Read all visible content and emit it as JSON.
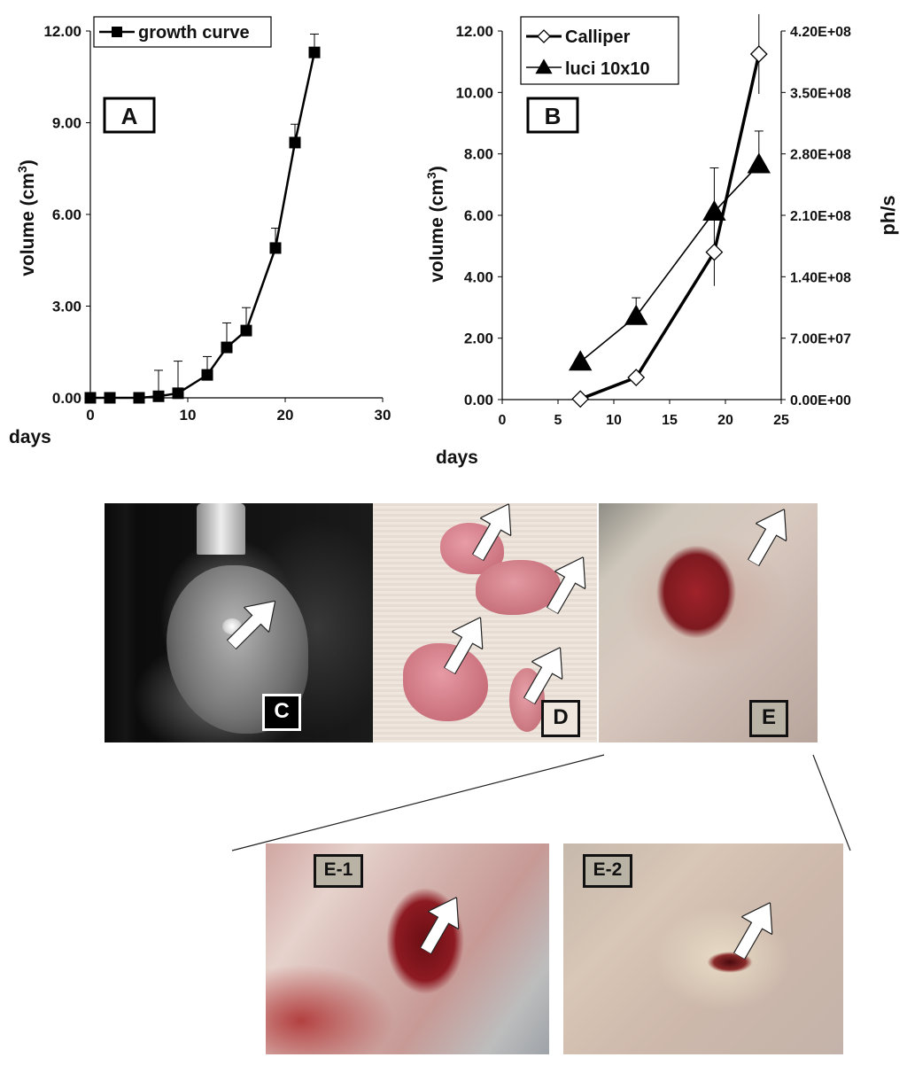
{
  "chart_data": [
    {
      "type": "line",
      "panel_label": "A",
      "xlabel": "days",
      "ylabel": "volume (cm",
      "ylabel_sup": "3",
      "ylabel_close": ")",
      "xlim": [
        0,
        30
      ],
      "ylim": [
        0,
        12
      ],
      "x_ticks": [
        "0",
        "10",
        "20",
        "30"
      ],
      "y_ticks": [
        "0.00",
        "3.00",
        "6.00",
        "9.00",
        "12.00"
      ],
      "legend": "top-left",
      "series": [
        {
          "name": "growth curve",
          "marker": "square-filled",
          "x": [
            0,
            2,
            5,
            7,
            9,
            12,
            14,
            16,
            19,
            21,
            23
          ],
          "y": [
            0.0,
            0.0,
            0.0,
            0.05,
            0.15,
            0.75,
            1.65,
            2.2,
            4.9,
            8.35,
            11.3
          ],
          "err": [
            0,
            0,
            0,
            0.85,
            1.05,
            0.6,
            0.8,
            0.75,
            0.65,
            0.6,
            0.6
          ]
        }
      ]
    },
    {
      "type": "line",
      "panel_label": "B",
      "xlabel": "days",
      "ylabel": "volume (cm",
      "ylabel_sup": "3",
      "ylabel_close": ")",
      "y2label": "ph/s",
      "xlim": [
        0,
        25
      ],
      "ylim": [
        0,
        12
      ],
      "y2lim": [
        0,
        420000000
      ],
      "x_ticks": [
        "0",
        "5",
        "10",
        "15",
        "20",
        "25"
      ],
      "y_ticks": [
        "0.00",
        "2.00",
        "4.00",
        "6.00",
        "8.00",
        "10.00",
        "12.00"
      ],
      "y2_ticks": [
        "0.00E+00",
        "7.00E+07",
        "1.40E+08",
        "2.10E+08",
        "2.80E+08",
        "3.50E+08",
        "4.20E+08"
      ],
      "legend": "top-left",
      "series": [
        {
          "name": "Calliper",
          "marker": "diamond-open",
          "axis": "left",
          "x": [
            7,
            12,
            19,
            23
          ],
          "y": [
            0.02,
            0.72,
            4.8,
            11.25
          ],
          "err": [
            0,
            0,
            1.1,
            1.3
          ]
        },
        {
          "name": "luci 10x10",
          "marker": "triangle-filled",
          "axis": "right",
          "x": [
            7,
            12,
            19,
            23
          ],
          "y": [
            43000000,
            95000000,
            214000000,
            268000000
          ],
          "err": [
            0,
            21000000,
            50000000,
            38000000
          ]
        }
      ]
    }
  ],
  "photos": {
    "c_label": "C",
    "d_label": "D",
    "e_label": "E",
    "e1_label": "E-1",
    "e2_label": "E-2"
  }
}
